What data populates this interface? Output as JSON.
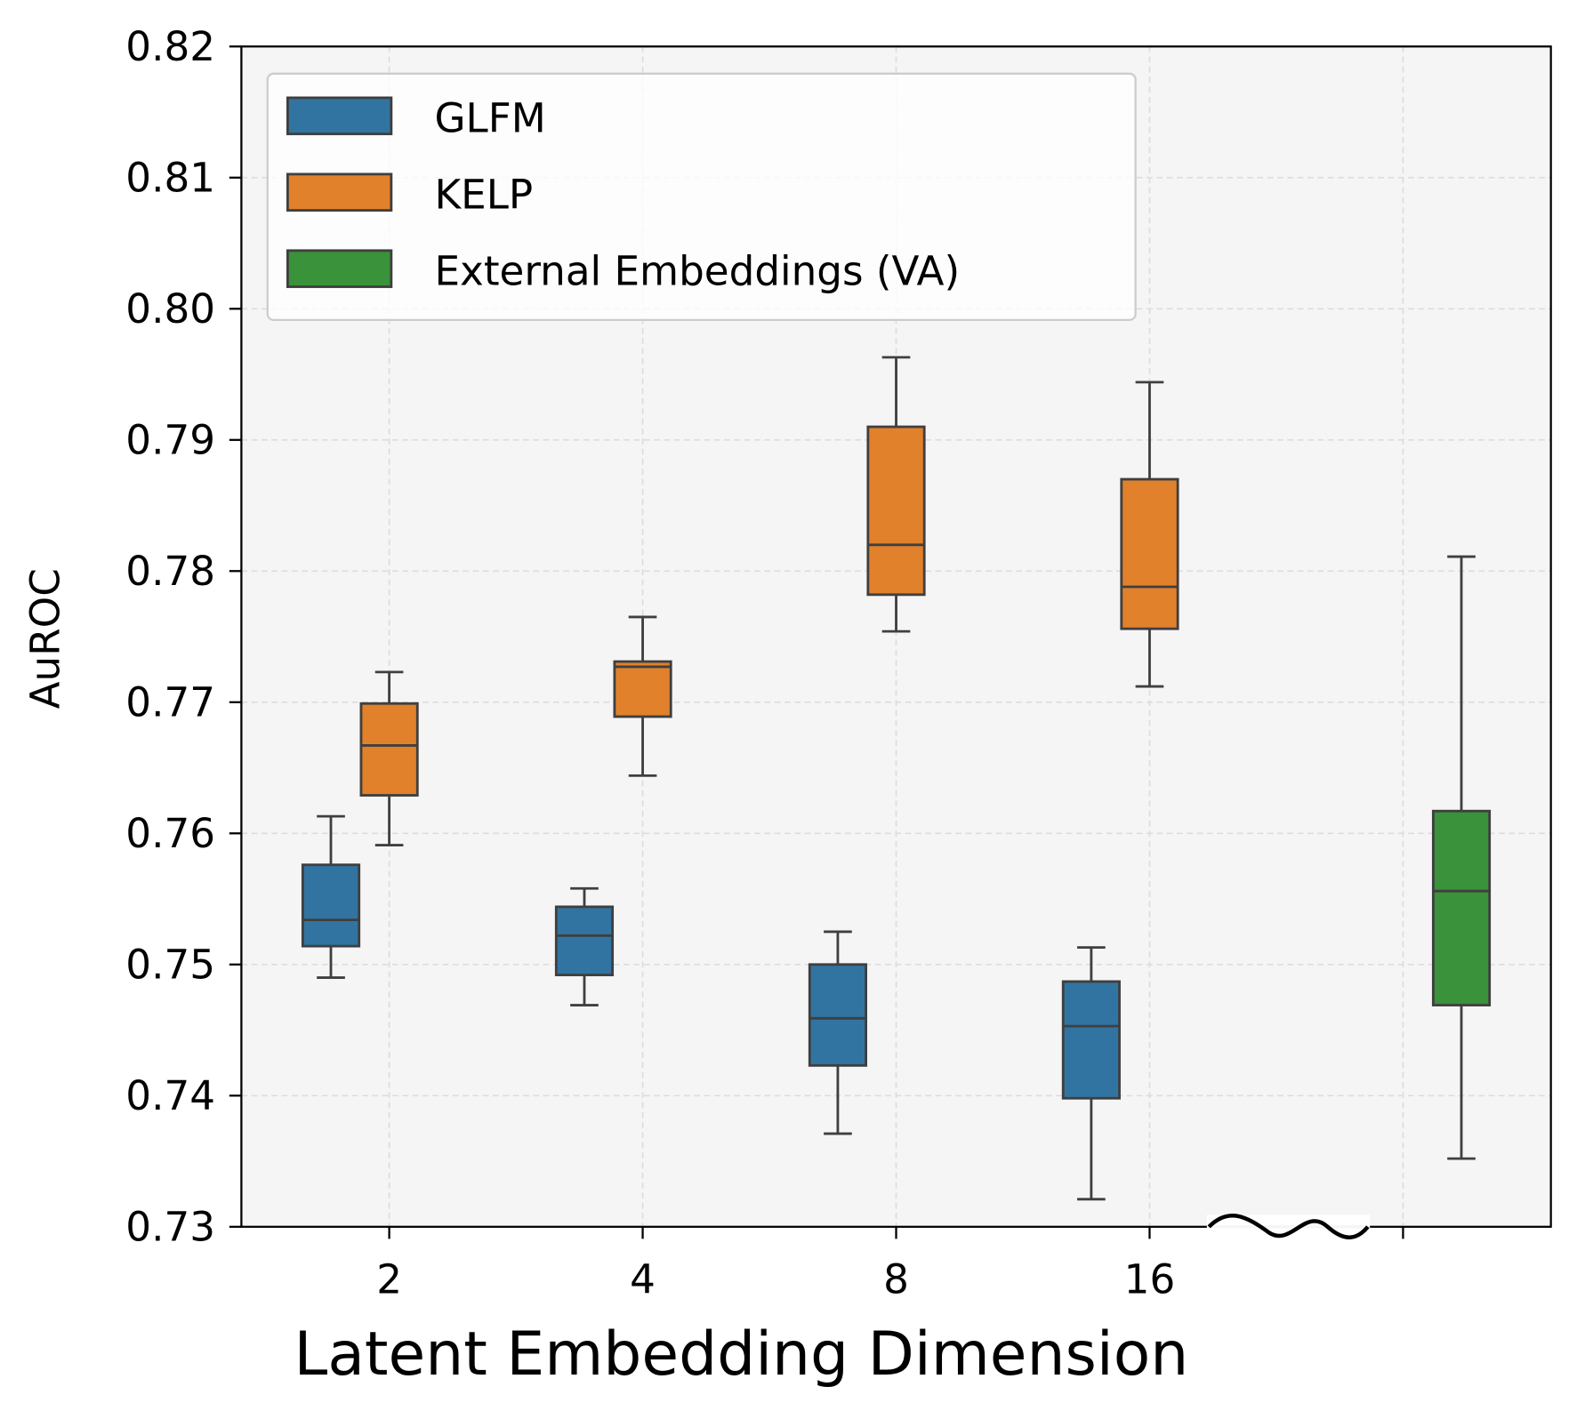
{
  "chart_data": {
    "type": "box",
    "title": "",
    "xlabel": "Latent Embedding Dimension",
    "ylabel": "AuROC",
    "ylim": [
      0.73,
      0.82
    ],
    "yticks": [
      "0.73",
      "0.74",
      "0.75",
      "0.76",
      "0.77",
      "0.78",
      "0.79",
      "0.80",
      "0.81",
      "0.82"
    ],
    "categories": [
      "2",
      "4",
      "8",
      "16",
      ""
    ],
    "grid": true,
    "legend_position": "top-left",
    "axis_break": "between 16 and last category",
    "series": [
      {
        "name": "GLFM",
        "color": "#3274a1",
        "boxes": [
          {
            "category": "2",
            "whisker_low": 0.749,
            "q1": 0.7514,
            "median": 0.7534,
            "q3": 0.7576,
            "whisker_high": 0.7613
          },
          {
            "category": "4",
            "whisker_low": 0.7469,
            "q1": 0.7492,
            "median": 0.7522,
            "q3": 0.7544,
            "whisker_high": 0.7558
          },
          {
            "category": "8",
            "whisker_low": 0.7371,
            "q1": 0.7423,
            "median": 0.7459,
            "q3": 0.75,
            "whisker_high": 0.7525
          },
          {
            "category": "16",
            "whisker_low": 0.7321,
            "q1": 0.7398,
            "median": 0.7453,
            "q3": 0.7487,
            "whisker_high": 0.7513
          }
        ]
      },
      {
        "name": "KELP",
        "color": "#e1812c",
        "boxes": [
          {
            "category": "2",
            "whisker_low": 0.7591,
            "q1": 0.7629,
            "median": 0.7667,
            "q3": 0.7699,
            "whisker_high": 0.7723
          },
          {
            "category": "4",
            "whisker_low": 0.7644,
            "q1": 0.7689,
            "median": 0.7727,
            "q3": 0.7731,
            "whisker_high": 0.7765
          },
          {
            "category": "8",
            "whisker_low": 0.7754,
            "q1": 0.7782,
            "median": 0.782,
            "q3": 0.791,
            "whisker_high": 0.7963
          },
          {
            "category": "16",
            "whisker_low": 0.7712,
            "q1": 0.7756,
            "median": 0.7788,
            "q3": 0.787,
            "whisker_high": 0.7944
          }
        ]
      },
      {
        "name": "External Embeddings (VA)",
        "color": "#3a923a",
        "boxes": [
          {
            "category": "",
            "whisker_low": 0.7352,
            "q1": 0.7469,
            "median": 0.7556,
            "q3": 0.7617,
            "whisker_high": 0.7811
          }
        ]
      }
    ]
  }
}
